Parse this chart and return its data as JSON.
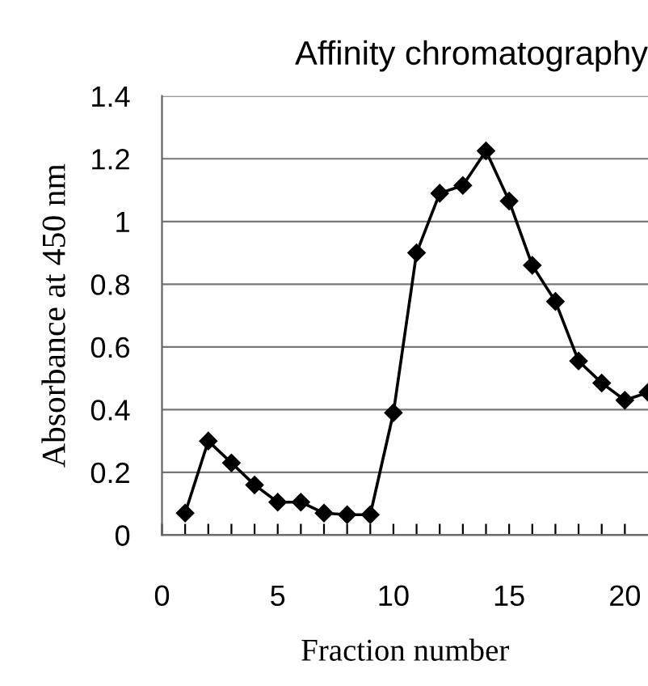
{
  "chart_data": {
    "type": "line",
    "title": "Affinity chromatography",
    "xlabel": "Fraction number",
    "ylabel": "Absorbance at 450 nm",
    "x": [
      1,
      2,
      3,
      4,
      5,
      6,
      7,
      8,
      9,
      10,
      11,
      12,
      13,
      14,
      15,
      16,
      17,
      18,
      19,
      20,
      21
    ],
    "series": [
      {
        "color": "#000000",
        "values": [
          0.07,
          0.3,
          0.23,
          0.16,
          0.105,
          0.105,
          0.07,
          0.065,
          0.065,
          0.39,
          0.9,
          1.09,
          1.115,
          1.225,
          1.065,
          0.86,
          0.745,
          0.555,
          0.485,
          0.43,
          0.455
        ]
      }
    ],
    "xlim": [
      0,
      21
    ],
    "xticks": [
      0,
      {
        "value": 1,
        "label": null
      },
      {
        "value": 2,
        "label": null
      },
      {
        "value": 3,
        "label": null
      },
      {
        "value": 4,
        "label": null
      },
      5,
      {
        "value": 6,
        "label": null
      },
      {
        "value": 7,
        "label": null
      },
      {
        "value": 8,
        "label": null
      },
      {
        "value": 9,
        "label": null
      },
      10,
      {
        "value": 11,
        "label": null
      },
      {
        "value": 12,
        "label": null
      },
      {
        "value": 13,
        "label": null
      },
      {
        "value": 14,
        "label": null
      },
      15,
      {
        "value": 16,
        "label": null
      },
      {
        "value": 17,
        "label": null
      },
      {
        "value": 18,
        "label": null
      },
      {
        "value": 19,
        "label": null
      },
      20
    ],
    "ylim": [
      0,
      1.4
    ],
    "yticks": [
      0,
      0.2,
      0.4,
      0.6,
      0.8,
      1,
      1.2,
      1.4
    ],
    "grid": "y",
    "marker": "diamond",
    "line_style": "solid",
    "legend": false
  }
}
